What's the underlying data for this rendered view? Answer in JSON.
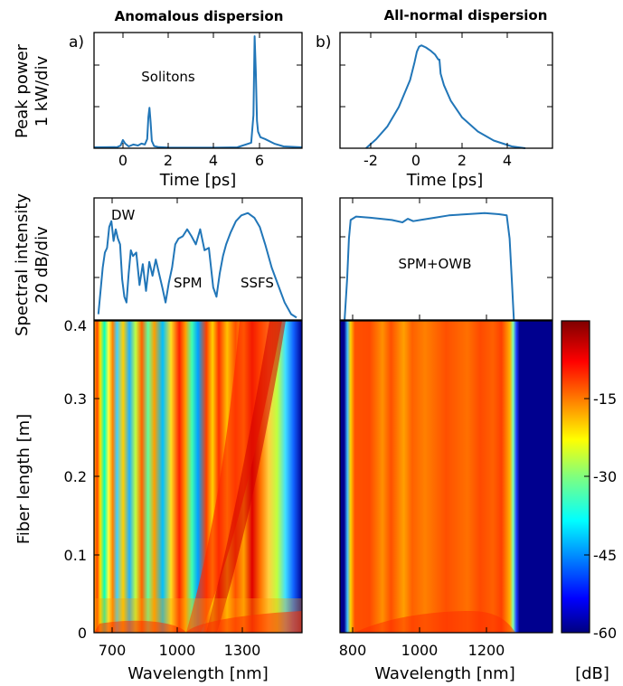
{
  "titles": {
    "left": "Anomalous dispersion",
    "right": "All-normal dispersion"
  },
  "panel_labels": {
    "a": "a)",
    "b": "b)"
  },
  "ylabels": {
    "peak_power": [
      "Peak power",
      "1 kW/div"
    ],
    "spectral": [
      "Spectral intensity",
      "20 dB/div"
    ],
    "fiber": "Fiber length [m]"
  },
  "annotations": {
    "solitons": "Solitons",
    "dw": "DW",
    "spm": "SPM",
    "ssfs": "SSFS",
    "spm_owb": "SPM+OWB"
  },
  "colorbar": {
    "unit": "[dB]",
    "ticks": [
      "-15",
      "-30",
      "-45",
      "-60"
    ],
    "min": -60,
    "max": 0
  },
  "chart_data": [
    {
      "id": "a-time",
      "type": "line",
      "xlabel": "Time [ps]",
      "ylabel": "Peak power 1 kW/div",
      "xlim": [
        -1.2,
        7.8
      ],
      "xticks": [
        "0",
        "2",
        "4",
        "6"
      ],
      "series": [
        {
          "x": [
            -1.2,
            -0.2,
            -0.05,
            0.05,
            0.15,
            0.3,
            0.5,
            0.7,
            0.85,
            1.0,
            1.1,
            1.15,
            1.2,
            1.25,
            1.3,
            1.4,
            1.6,
            2.0,
            3.0,
            4.0,
            5.0,
            5.6,
            5.7,
            5.75,
            5.8,
            5.85,
            5.9,
            6.0,
            6.2,
            6.6,
            7.0,
            7.8
          ],
          "y": [
            0.05,
            0.06,
            0.15,
            0.45,
            0.25,
            0.1,
            0.2,
            0.15,
            0.25,
            0.2,
            0.5,
            1.7,
            2.2,
            1.4,
            0.4,
            0.12,
            0.06,
            0.04,
            0.03,
            0.03,
            0.05,
            0.3,
            1.8,
            6.1,
            4.2,
            1.5,
            0.9,
            0.6,
            0.5,
            0.25,
            0.1,
            0.05
          ]
        }
      ]
    },
    {
      "id": "b-time",
      "type": "line",
      "xlabel": "Time [ps]",
      "ylabel": "",
      "xlim": [
        -3.6,
        5.8
      ],
      "xticks": [
        "-2",
        "0",
        "2",
        "4"
      ],
      "series": [
        {
          "x": [
            -2.45,
            -2.0,
            -1.5,
            -1.0,
            -0.5,
            -0.3,
            -0.2,
            -0.1,
            0.0,
            0.2,
            0.4,
            0.6,
            0.75,
            0.8,
            0.85,
            1.0,
            1.3,
            1.8,
            2.5,
            3.2,
            4.0,
            4.6
          ],
          "y": [
            0.0,
            0.35,
            0.85,
            1.6,
            2.65,
            3.35,
            3.75,
            3.95,
            4.0,
            3.92,
            3.8,
            3.65,
            3.45,
            3.45,
            2.9,
            2.45,
            1.85,
            1.2,
            0.65,
            0.3,
            0.07,
            0.0
          ]
        }
      ]
    },
    {
      "id": "a-spectrum",
      "type": "line",
      "xlabel": "Wavelength [nm]",
      "ylabel": "Spectral intensity 20 dB/div",
      "xlim": [
        620,
        1580
      ],
      "series": [
        {
          "x": [
            640,
            660,
            670,
            680,
            690,
            700,
            710,
            720,
            730,
            740,
            750,
            760,
            770,
            780,
            790,
            800,
            815,
            830,
            845,
            860,
            875,
            890,
            905,
            920,
            935,
            950,
            965,
            980,
            995,
            1010,
            1030,
            1050,
            1070,
            1090,
            1110,
            1130,
            1150,
            1170,
            1185,
            1200,
            1215,
            1230,
            1250,
            1275,
            1300,
            1330,
            1360,
            1385,
            1410,
            1440,
            1470,
            1500,
            1530,
            1555
          ],
          "y": [
            -95,
            -55,
            -42,
            -38,
            -20,
            -15,
            -32,
            -22,
            -30,
            -35,
            -65,
            -80,
            -85,
            -60,
            -40,
            -45,
            -42,
            -70,
            -52,
            -75,
            -50,
            -62,
            -48,
            -60,
            -72,
            -85,
            -68,
            -55,
            -35,
            -30,
            -28,
            -22,
            -28,
            -35,
            -22,
            -40,
            -38,
            -72,
            -80,
            -60,
            -45,
            -35,
            -25,
            -15,
            -10,
            -8,
            -12,
            -20,
            -35,
            -55,
            -70,
            -85,
            -95,
            -98
          ]
        }
      ]
    },
    {
      "id": "b-spectrum",
      "type": "line",
      "xlabel": "Wavelength [nm]",
      "ylabel": "",
      "xlim": [
        795,
        1390
      ],
      "series": [
        {
          "x": [
            808,
            815,
            820,
            825,
            840,
            880,
            940,
            970,
            985,
            1000,
            1020,
            1060,
            1100,
            1150,
            1200,
            1240,
            1262,
            1270,
            1276,
            1282
          ],
          "y": [
            -100,
            -65,
            -30,
            -14,
            -11,
            -12,
            -14,
            -16,
            -13,
            -15,
            -14,
            -12,
            -10,
            -9,
            -8,
            -9,
            -10,
            -30,
            -65,
            -100
          ]
        }
      ]
    },
    {
      "id": "a-map",
      "type": "heatmap",
      "xlabel": "Wavelength [nm]",
      "ylabel": "Fiber length [m]",
      "xlim": [
        620,
        1580
      ],
      "ylim": [
        0,
        0.4
      ],
      "xticks": [
        "700",
        "1000",
        "1300"
      ],
      "yticks": [
        "0",
        "0.1",
        "0.2",
        "0.3",
        "0.4"
      ],
      "zlim": [
        -60,
        0
      ]
    },
    {
      "id": "b-map",
      "type": "heatmap",
      "xlabel": "Wavelength [nm]",
      "ylabel": "",
      "xlim": [
        795,
        1390
      ],
      "ylim": [
        0,
        0.4
      ],
      "xticks": [
        "800",
        "1000",
        "1200"
      ],
      "zlim": [
        -60,
        0
      ]
    }
  ]
}
